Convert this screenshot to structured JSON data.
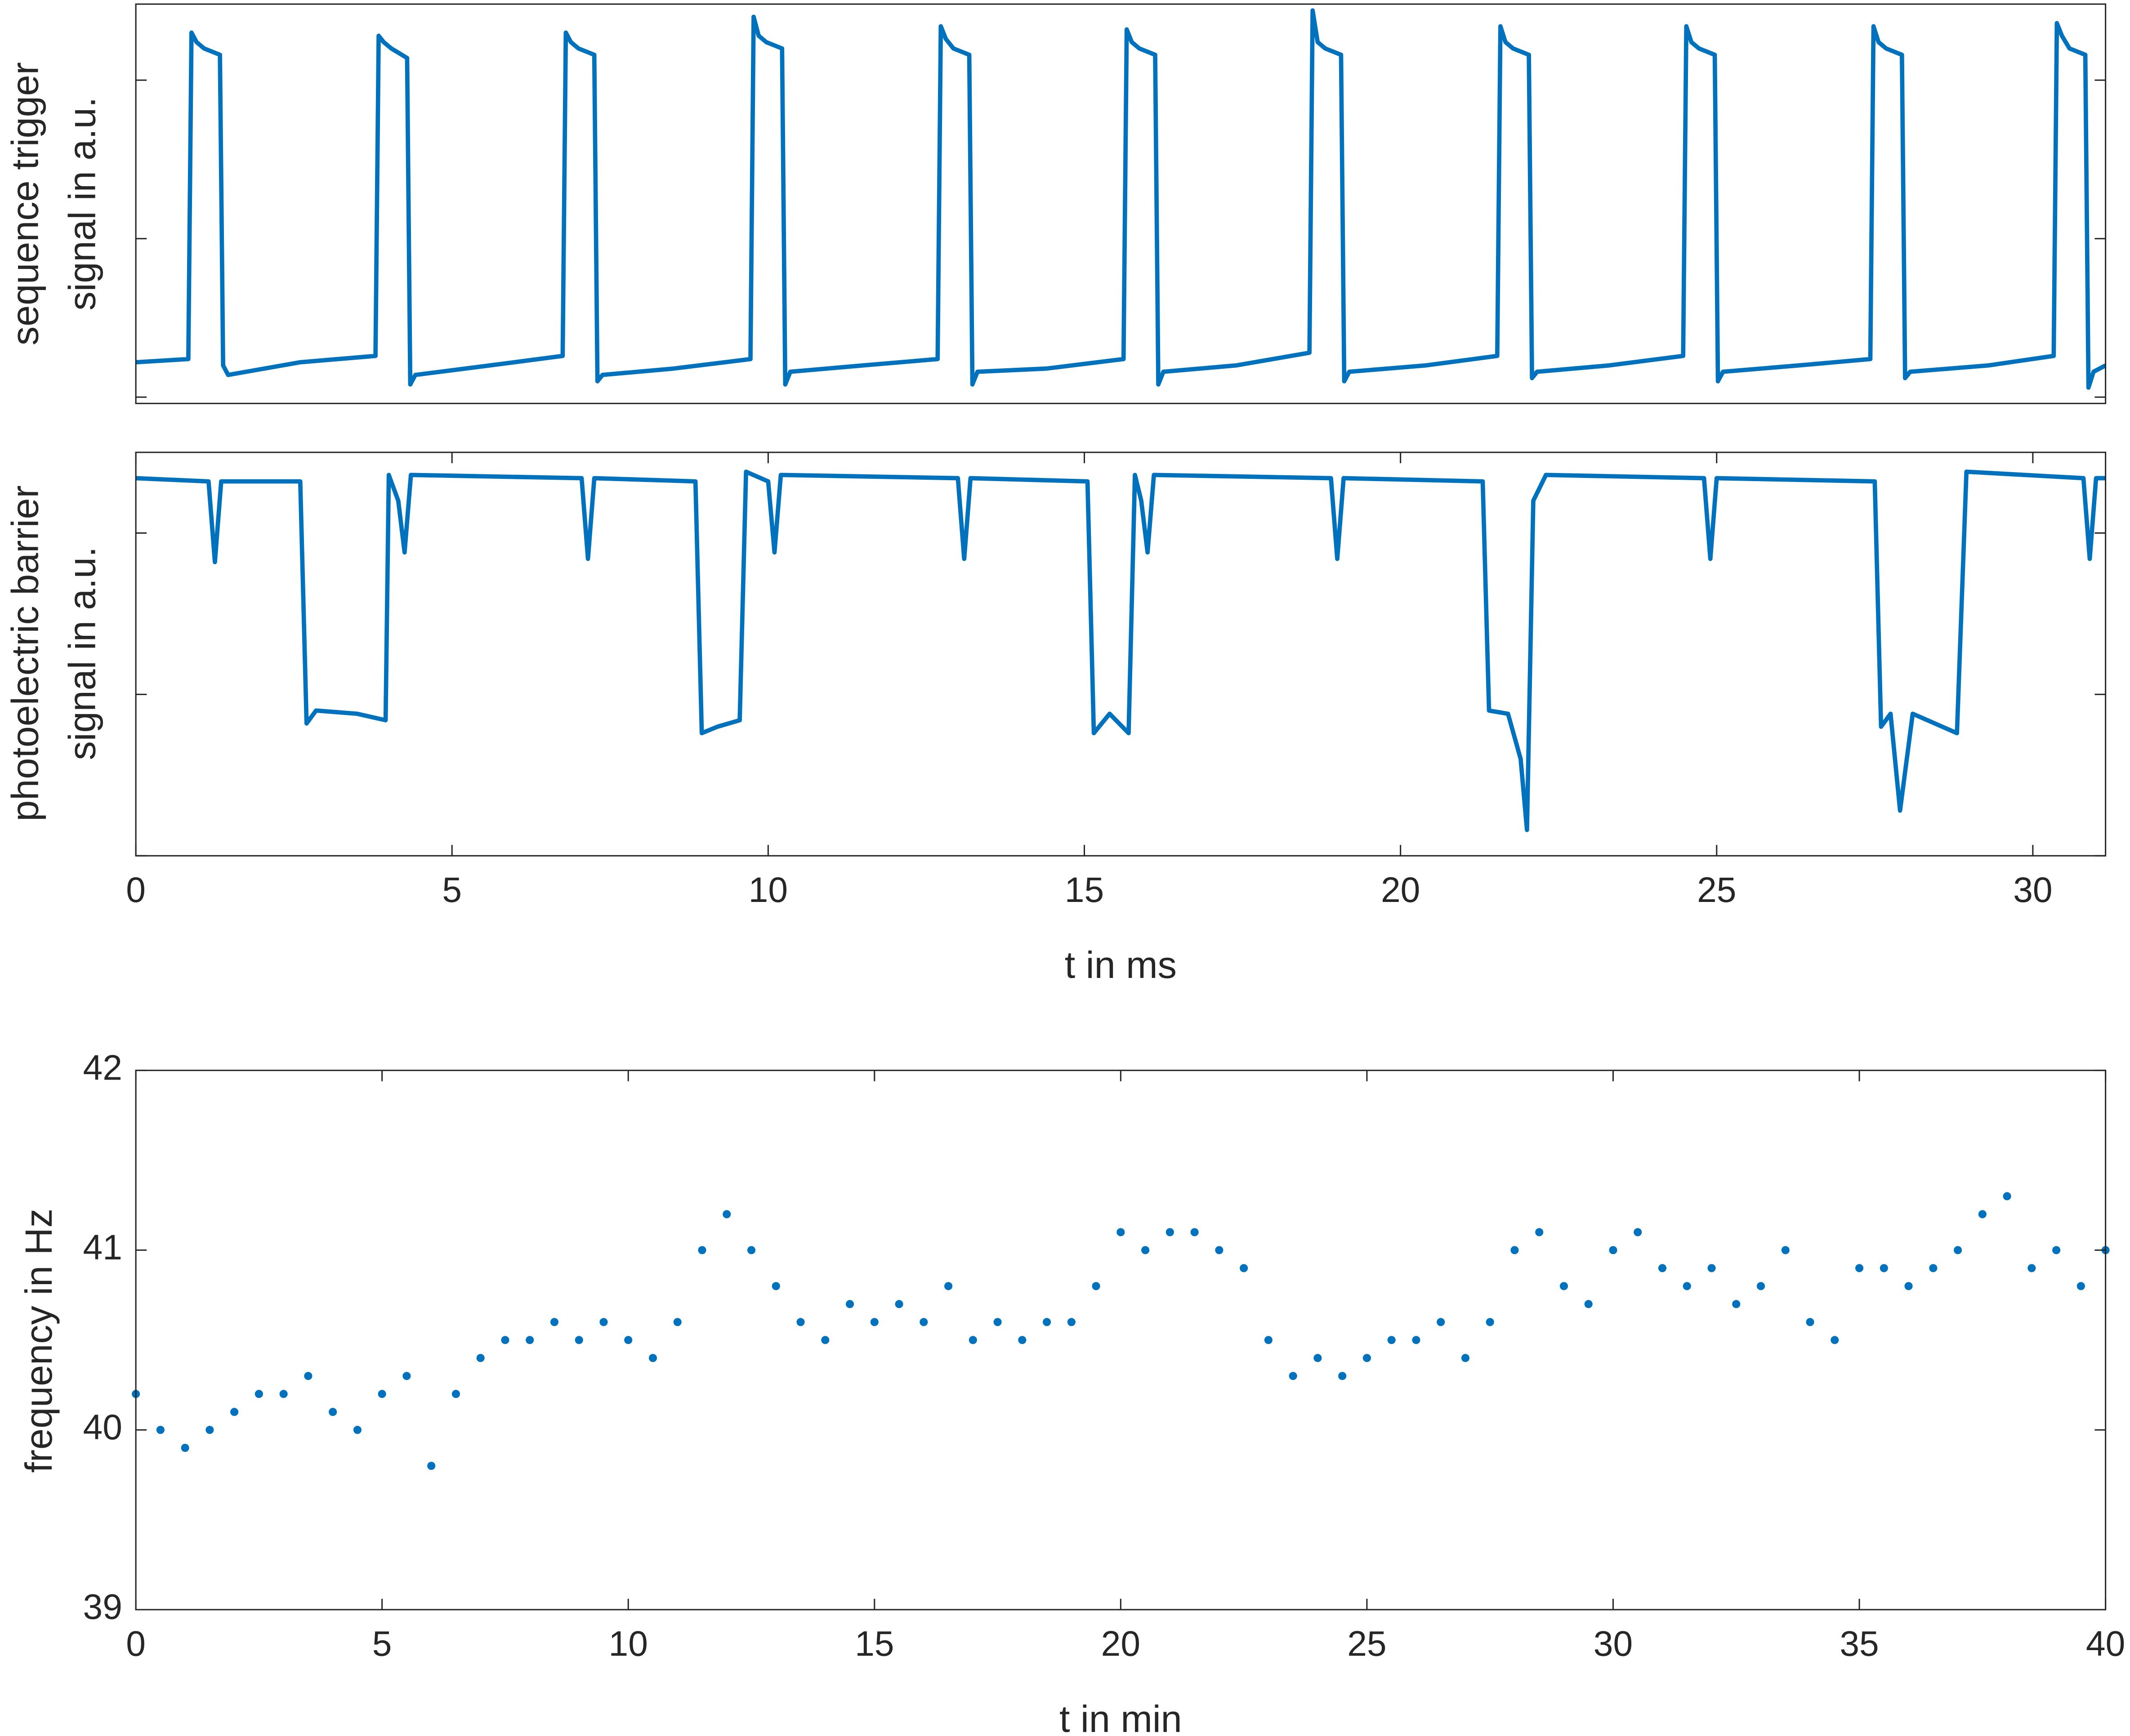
{
  "chart_data": [
    {
      "type": "line",
      "ylabel": [
        "sequence trigger",
        "signal in a.u."
      ],
      "color": "#0072BD",
      "xlim": [
        0,
        31.15
      ],
      "ylim": [
        -0.02,
        1.24
      ],
      "yticks": [
        0,
        0.5,
        1
      ],
      "ytick_labels": false,
      "x": [
        0,
        0.83,
        0.88,
        0.96,
        1.08,
        1.33,
        1.38,
        1.46,
        2.6,
        3.79,
        3.84,
        3.92,
        4.04,
        4.29,
        4.34,
        4.42,
        5.6,
        6.75,
        6.8,
        6.88,
        7.0,
        7.25,
        7.3,
        7.38,
        8.5,
        9.72,
        9.77,
        9.85,
        9.97,
        10.22,
        10.27,
        10.35,
        11.5,
        12.68,
        12.73,
        12.81,
        12.93,
        13.18,
        13.23,
        13.31,
        14.4,
        15.62,
        15.67,
        15.75,
        15.87,
        16.12,
        16.17,
        16.25,
        17.4,
        18.56,
        18.61,
        18.69,
        18.81,
        19.06,
        19.11,
        19.19,
        20.4,
        21.53,
        21.58,
        21.66,
        21.78,
        22.03,
        22.08,
        22.16,
        23.3,
        24.47,
        24.52,
        24.6,
        24.72,
        24.97,
        25.02,
        25.1,
        26.3,
        27.43,
        27.48,
        27.56,
        27.68,
        27.93,
        27.98,
        28.06,
        29.3,
        30.33,
        30.38,
        30.46,
        30.58,
        30.83,
        30.88,
        30.96,
        31.15
      ],
      "values": [
        0.11,
        0.12,
        1.15,
        1.12,
        1.1,
        1.08,
        0.1,
        0.07,
        0.11,
        0.13,
        1.14,
        1.12,
        1.1,
        1.07,
        0.04,
        0.07,
        0.1,
        0.13,
        1.15,
        1.12,
        1.1,
        1.08,
        0.05,
        0.07,
        0.09,
        0.12,
        1.2,
        1.14,
        1.12,
        1.1,
        0.04,
        0.08,
        0.1,
        0.12,
        1.17,
        1.13,
        1.1,
        1.08,
        0.04,
        0.08,
        0.09,
        0.12,
        1.16,
        1.12,
        1.1,
        1.08,
        0.04,
        0.08,
        0.1,
        0.14,
        1.22,
        1.12,
        1.1,
        1.08,
        0.05,
        0.08,
        0.1,
        0.13,
        1.17,
        1.12,
        1.1,
        1.08,
        0.06,
        0.08,
        0.1,
        0.13,
        1.17,
        1.12,
        1.1,
        1.08,
        0.05,
        0.08,
        0.1,
        0.12,
        1.17,
        1.12,
        1.1,
        1.08,
        0.06,
        0.08,
        0.1,
        0.13,
        1.18,
        1.14,
        1.1,
        1.08,
        0.03,
        0.08,
        0.1
      ]
    },
    {
      "type": "line",
      "ylabel": [
        "photoelectric barrier",
        "signal in a.u."
      ],
      "xlabel": "t in ms",
      "color": "#0072BD",
      "xlim": [
        0,
        31.15
      ],
      "ylim": [
        0,
        1.25
      ],
      "yticks": [
        0,
        0.5,
        1
      ],
      "ytick_labels": false,
      "xticks": [
        0,
        5,
        10,
        15,
        20,
        25,
        30
      ],
      "x": [
        0,
        1.15,
        1.25,
        1.35,
        2.6,
        2.7,
        2.85,
        3.5,
        3.95,
        4.0,
        4.15,
        4.25,
        4.35,
        7.05,
        7.15,
        7.25,
        8.85,
        8.95,
        9.2,
        9.55,
        9.65,
        10.0,
        10.1,
        10.2,
        13.0,
        13.1,
        13.2,
        15.05,
        15.15,
        15.4,
        15.7,
        15.8,
        15.9,
        16.0,
        16.1,
        18.9,
        19.0,
        19.1,
        21.3,
        21.4,
        21.7,
        21.9,
        22.0,
        22.1,
        22.3,
        24.8,
        24.9,
        25.0,
        27.5,
        27.6,
        27.75,
        27.9,
        28.1,
        28.8,
        28.95,
        30.8,
        30.9,
        31.0,
        31.15
      ],
      "values": [
        1.17,
        1.16,
        0.91,
        1.16,
        1.16,
        0.41,
        0.45,
        0.44,
        0.42,
        1.18,
        1.1,
        0.94,
        1.18,
        1.17,
        0.92,
        1.17,
        1.16,
        0.38,
        0.4,
        0.42,
        1.19,
        1.16,
        0.94,
        1.18,
        1.17,
        0.92,
        1.17,
        1.16,
        0.38,
        0.44,
        0.38,
        1.18,
        1.1,
        0.94,
        1.18,
        1.17,
        0.92,
        1.17,
        1.16,
        0.45,
        0.44,
        0.3,
        0.08,
        1.1,
        1.18,
        1.17,
        0.92,
        1.17,
        1.16,
        0.4,
        0.44,
        0.14,
        0.44,
        0.38,
        1.19,
        1.17,
        0.92,
        1.17,
        1.17
      ]
    },
    {
      "type": "scatter",
      "ylabel": "frequency in Hz",
      "xlabel": "t in min",
      "color": "#0072BD",
      "xlim": [
        0,
        40
      ],
      "ylim": [
        39,
        42
      ],
      "yticks": [
        39,
        40,
        41,
        42
      ],
      "xticks": [
        0,
        5,
        10,
        15,
        20,
        25,
        30,
        35,
        40
      ],
      "x": [
        0,
        0.5,
        1,
        1.5,
        2,
        2.5,
        3,
        3.5,
        4,
        4.5,
        5,
        5.5,
        6,
        6.5,
        7,
        7.5,
        8,
        8.5,
        9,
        9.5,
        10,
        10.5,
        11,
        11.5,
        12,
        12.5,
        13,
        13.5,
        14,
        14.5,
        15,
        15.5,
        16,
        16.5,
        17,
        17.5,
        18,
        18.5,
        19,
        19.5,
        20,
        20.5,
        21,
        21.5,
        22,
        22.5,
        23,
        23.5,
        24,
        24.5,
        25,
        25.5,
        26,
        26.5,
        27,
        27.5,
        28,
        28.5,
        29,
        29.5,
        30,
        30.5,
        31,
        31.5,
        32,
        32.5,
        33,
        33.5,
        34,
        34.5,
        35,
        35.5,
        36,
        36.5,
        37,
        37.5,
        38,
        38.5,
        39,
        39.5,
        40
      ],
      "values": [
        40.2,
        40.0,
        39.9,
        40.0,
        40.1,
        40.2,
        40.2,
        40.3,
        40.1,
        40.0,
        40.2,
        40.3,
        39.8,
        40.2,
        40.4,
        40.5,
        40.5,
        40.6,
        40.5,
        40.6,
        40.5,
        40.4,
        40.6,
        41.0,
        41.2,
        41.0,
        40.8,
        40.6,
        40.5,
        40.7,
        40.6,
        40.7,
        40.6,
        40.8,
        40.5,
        40.6,
        40.5,
        40.6,
        40.6,
        40.8,
        41.1,
        41.0,
        41.1,
        41.1,
        41.0,
        40.9,
        40.5,
        40.3,
        40.4,
        40.3,
        40.4,
        40.5,
        40.5,
        40.6,
        40.4,
        40.6,
        41.0,
        41.1,
        40.8,
        40.7,
        41.0,
        41.1,
        40.9,
        40.8,
        40.9,
        40.7,
        40.8,
        41.0,
        40.6,
        40.5,
        40.9,
        40.9,
        40.8,
        40.9,
        41.0,
        41.2,
        41.3,
        40.9,
        41.0,
        40.8,
        41.0
      ]
    }
  ]
}
